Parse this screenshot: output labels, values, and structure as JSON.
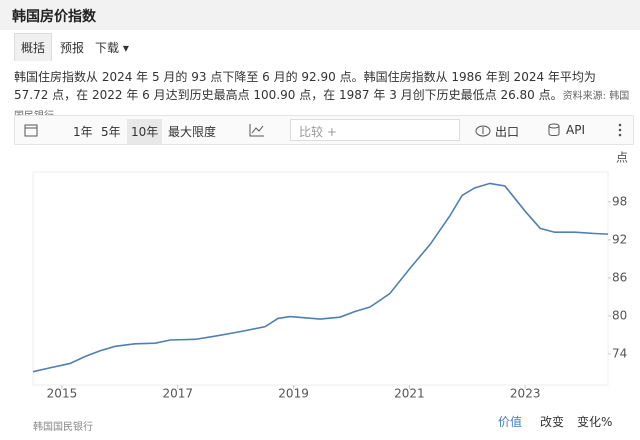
{
  "header": {
    "title": "韩国房价指数"
  },
  "tabs": [
    "概括",
    "预报",
    "下载"
  ],
  "description": {
    "text": "韩国住房指数从 2024 年 5 月的 93 点下降至 6 月的 92.90 点。韩国住房指数从 1986 年到 2024 年平均为 57.72 点，在 2022 年 6 月达到历史最高点 100.90 点，在 1987 年 3 月创下历史最低点 26.80 点。",
    "source": "资料来源: 韩国国民银行"
  },
  "toolbar": {
    "ranges": [
      "1年",
      "5年",
      "10年",
      "最大限度"
    ],
    "compare": "比较 +",
    "export": "出口",
    "api": "API"
  },
  "chart_data": {
    "type": "line",
    "y_unit": "点",
    "x": [
      2014.5,
      2014.79,
      2015.14,
      2015.4,
      2015.66,
      2015.92,
      2016.26,
      2016.61,
      2016.87,
      2017.3,
      2017.64,
      2018.07,
      2018.51,
      2018.73,
      2018.94,
      2019.46,
      2019.8,
      2020.06,
      2020.32,
      2020.66,
      2021.01,
      2021.36,
      2021.7,
      2021.91,
      2022.13,
      2022.39,
      2022.65,
      2023.0,
      2023.26,
      2023.51,
      2023.86,
      2024.2,
      2024.43
    ],
    "series": [
      {
        "color": "#4f7fb3",
        "values": [
          71.2,
          71.8,
          72.5,
          73.6,
          74.5,
          75.2,
          75.6,
          75.7,
          76.2,
          76.3,
          76.8,
          77.5,
          78.3,
          79.6,
          79.9,
          79.5,
          79.8,
          80.7,
          81.4,
          83.5,
          87.5,
          91.3,
          95.8,
          99.0,
          100.2,
          100.9,
          100.5,
          96.5,
          93.8,
          93.2,
          93.2,
          93.0,
          92.9
        ]
      }
    ],
    "xlim": [
      2014.5,
      2024.43
    ],
    "xticks": [
      2015,
      2017,
      2019,
      2021,
      2023
    ],
    "ylim": [
      69.1,
      102.7
    ],
    "yticks": [
      74,
      80,
      86,
      92,
      98
    ]
  },
  "footer": {
    "source": "韩国国民银行",
    "tabs": [
      "价值",
      "改变",
      "变化%"
    ]
  }
}
